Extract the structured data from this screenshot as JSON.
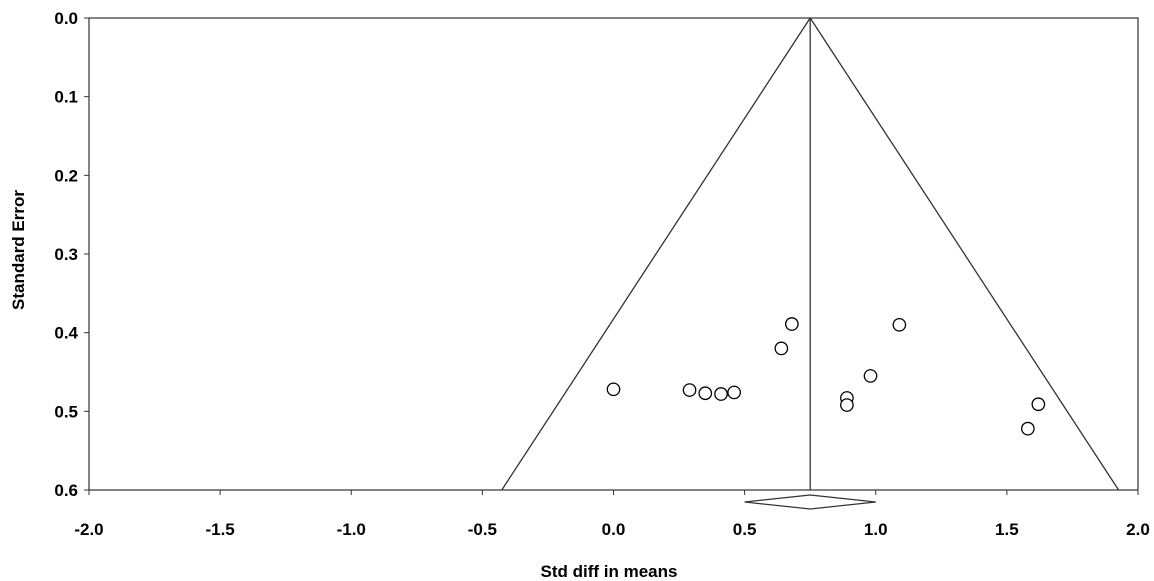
{
  "chart_data": {
    "type": "scatter",
    "xlabel": "Std diff in means",
    "ylabel": "Standard Error",
    "xlim": [
      -2.0,
      2.0
    ],
    "ylim": [
      0.0,
      0.6
    ],
    "y_inverted": true,
    "x_ticks": [
      "-2.0",
      "-1.5",
      "-1.0",
      "-0.5",
      "0.0",
      "0.5",
      "1.0",
      "1.5",
      "2.0"
    ],
    "y_ticks": [
      "0.0",
      "0.1",
      "0.2",
      "0.3",
      "0.4",
      "0.5",
      "0.6"
    ],
    "summary_effect": 0.75,
    "confidence_interval": [
      0.5,
      1.0
    ],
    "points": [
      {
        "x": 0.0,
        "y": 0.472
      },
      {
        "x": 0.29,
        "y": 0.473
      },
      {
        "x": 0.35,
        "y": 0.477
      },
      {
        "x": 0.41,
        "y": 0.478
      },
      {
        "x": 0.46,
        "y": 0.476
      },
      {
        "x": 0.64,
        "y": 0.42
      },
      {
        "x": 0.68,
        "y": 0.389
      },
      {
        "x": 0.89,
        "y": 0.483
      },
      {
        "x": 0.89,
        "y": 0.492
      },
      {
        "x": 0.98,
        "y": 0.455
      },
      {
        "x": 1.09,
        "y": 0.39
      },
      {
        "x": 1.58,
        "y": 0.522
      },
      {
        "x": 1.62,
        "y": 0.491
      }
    ],
    "grid": false,
    "colors": {
      "line": "#333333",
      "marker_fill": "#ffffff",
      "marker_stroke": "#000000"
    }
  }
}
